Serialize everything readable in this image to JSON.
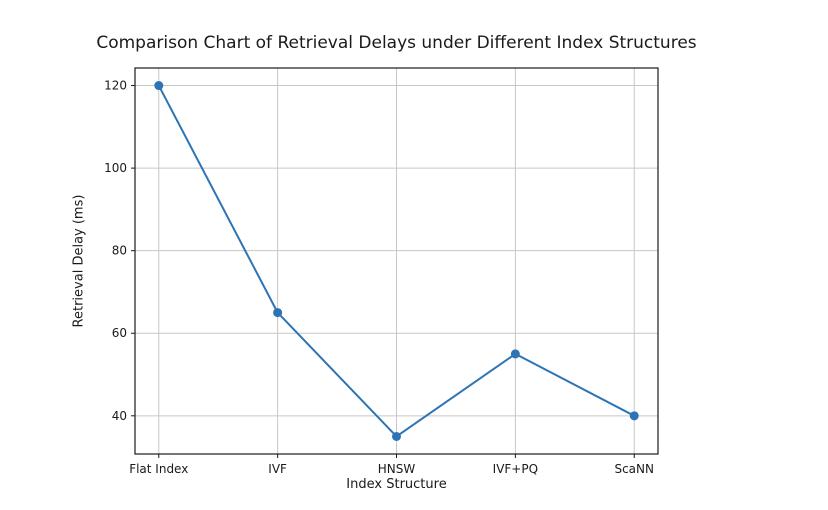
{
  "chart_data": {
    "type": "line",
    "title": "Comparison Chart of Retrieval Delays under Different Index Structures",
    "xlabel": "Index Structure",
    "ylabel": "Retrieval Delay (ms)",
    "categories": [
      "Flat Index",
      "IVF",
      "HNSW",
      "IVF+PQ",
      "ScaNN"
    ],
    "values": [
      120,
      65,
      35,
      55,
      40
    ],
    "yticks": [
      40,
      60,
      80,
      100,
      120
    ],
    "ylim": [
      30.75,
      124.25
    ],
    "xlim": [
      -0.2,
      4.2
    ],
    "grid": true,
    "legend": "none",
    "marker": "circle",
    "line_color": "#2d74b5",
    "grid_color": "#c7c7c7",
    "axis_color": "#1a1a1a",
    "text_color": "#1a1a1a",
    "background_color": "#ffffff"
  }
}
